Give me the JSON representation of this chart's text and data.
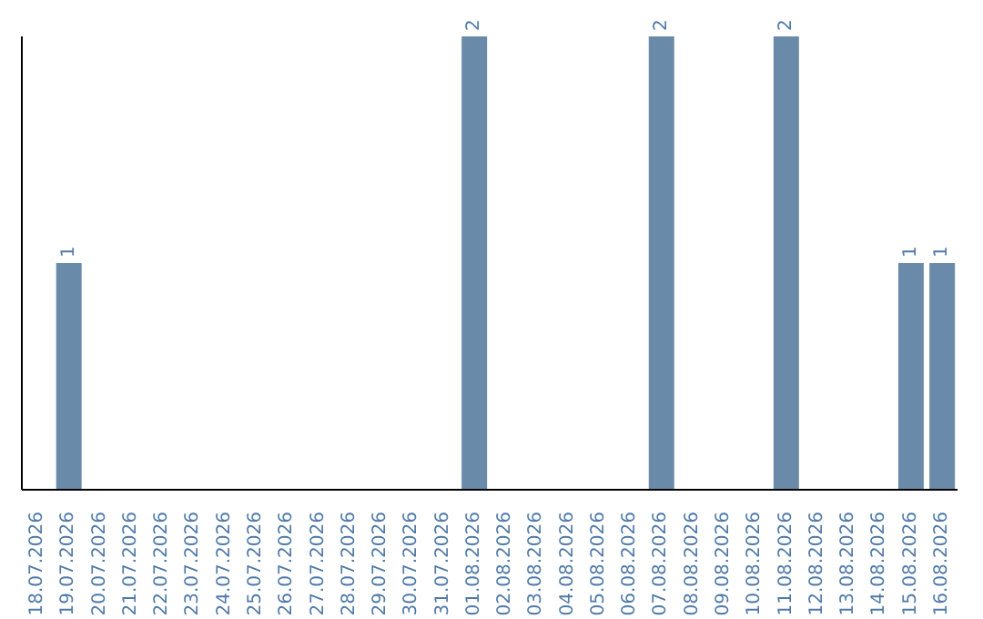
{
  "chart_data": {
    "type": "bar",
    "categories": [
      "18.07.2026",
      "19.07.2026",
      "20.07.2026",
      "21.07.2026",
      "22.07.2026",
      "23.07.2026",
      "24.07.2026",
      "25.07.2026",
      "26.07.2026",
      "27.07.2026",
      "28.07.2026",
      "29.07.2026",
      "30.07.2026",
      "31.07.2026",
      "01.08.2026",
      "02.08.2026",
      "03.08.2026",
      "04.08.2026",
      "05.08.2026",
      "06.08.2026",
      "07.08.2026",
      "08.08.2026",
      "09.08.2026",
      "10.08.2026",
      "11.08.2026",
      "12.08.2026",
      "13.08.2026",
      "14.08.2026",
      "15.08.2026",
      "16.08.2026"
    ],
    "values": [
      0,
      1,
      0,
      0,
      0,
      0,
      0,
      0,
      0,
      0,
      0,
      0,
      0,
      0,
      2,
      0,
      0,
      0,
      0,
      0,
      2,
      0,
      0,
      0,
      2,
      0,
      0,
      0,
      1,
      1
    ],
    "value_labels": [
      null,
      "1",
      null,
      null,
      null,
      null,
      null,
      null,
      null,
      null,
      null,
      null,
      null,
      null,
      "2",
      null,
      null,
      null,
      null,
      null,
      "2",
      null,
      null,
      null,
      "2",
      null,
      null,
      null,
      "1",
      "1"
    ],
    "color": "#6a8aaa"
  }
}
